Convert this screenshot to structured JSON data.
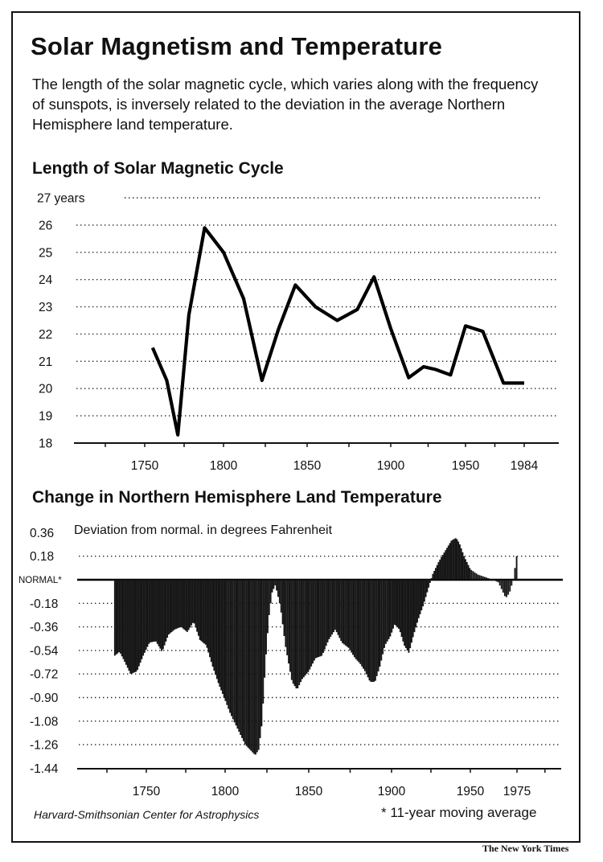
{
  "title": "Solar Magnetism and Temperature",
  "subtitle": "The length of the solar magnetic cycle, which varies along with the frequency of sunspots, is inversely related to the deviation in the average Northern Hemisphere land temperature.",
  "source": "Harvard-Smithsonian Center for Astrophysics",
  "footnote": "* 11-year  moving average",
  "credit": "The New York Times",
  "chart_data": [
    {
      "type": "line",
      "title": "Length of Solar Magnetic Cycle",
      "ylabel": "years",
      "ylim": [
        18,
        27
      ],
      "y_ticks": [
        "27 years",
        "26",
        "25",
        "24",
        "23",
        "22",
        "21",
        "20",
        "19",
        "18"
      ],
      "x_ticks": [
        "1750",
        "1800",
        "1850",
        "1900",
        "1950",
        "1984"
      ],
      "grid": true,
      "series": [
        {
          "x": [
            1755,
            1764,
            1771,
            1778,
            1788,
            1800,
            1812,
            1823,
            1833,
            1843,
            1855,
            1868,
            1880,
            1890,
            1900,
            1912,
            1922,
            1930,
            1940,
            1950,
            1960,
            1972,
            1984
          ],
          "y": [
            21.5,
            20.3,
            18.3,
            22.7,
            25.9,
            25.0,
            23.3,
            20.3,
            22.2,
            23.8,
            23.0,
            22.5,
            22.9,
            24.1,
            22.2,
            20.4,
            20.8,
            20.7,
            20.5,
            22.3,
            22.1,
            20.2,
            20.2
          ]
        }
      ]
    },
    {
      "type": "bar",
      "title": "Change in Northern Hemisphere Land Temperature",
      "note": "Deviation from normal. in degrees Fahrenheit",
      "baseline_label": "NORMAL*",
      "ylim": [
        -1.44,
        0.36
      ],
      "y_ticks": [
        "0.36",
        "0.18",
        "-0.18",
        "-0.36",
        "-0.54",
        "-0.72",
        "-0.90",
        "-1.08",
        "-1.26",
        "-1.44"
      ],
      "x_ticks": [
        "1750",
        "1800",
        "1850",
        "1900",
        "1950",
        "1975"
      ],
      "grid": true,
      "series": [
        {
          "name": "11-year moving average",
          "x": [
            1730,
            1733,
            1736,
            1740,
            1744,
            1748,
            1752,
            1756,
            1760,
            1764,
            1768,
            1772,
            1776,
            1780,
            1784,
            1788,
            1792,
            1796,
            1800,
            1803,
            1806,
            1809,
            1812,
            1815,
            1818,
            1820,
            1822,
            1824,
            1826,
            1828,
            1830,
            1833,
            1836,
            1840,
            1843,
            1846,
            1850,
            1854,
            1858,
            1862,
            1866,
            1870,
            1874,
            1878,
            1881,
            1884,
            1887,
            1890,
            1893,
            1896,
            1899,
            1902,
            1905,
            1908,
            1911,
            1914,
            1917,
            1920,
            1923,
            1926,
            1930,
            1934,
            1938,
            1941,
            1943,
            1946,
            1950,
            1954,
            1958,
            1962,
            1965,
            1967,
            1969,
            1971,
            1973,
            1975
          ],
          "y": [
            -0.58,
            -0.55,
            -0.62,
            -0.72,
            -0.7,
            -0.58,
            -0.48,
            -0.47,
            -0.55,
            -0.42,
            -0.38,
            -0.36,
            -0.4,
            -0.32,
            -0.46,
            -0.5,
            -0.66,
            -0.8,
            -0.92,
            -1.02,
            -1.1,
            -1.18,
            -1.26,
            -1.3,
            -1.34,
            -1.3,
            -1.1,
            -0.66,
            -0.3,
            -0.1,
            -0.04,
            -0.2,
            -0.5,
            -0.78,
            -0.84,
            -0.76,
            -0.7,
            -0.6,
            -0.58,
            -0.46,
            -0.38,
            -0.48,
            -0.52,
            -0.6,
            -0.64,
            -0.7,
            -0.78,
            -0.78,
            -0.66,
            -0.5,
            -0.44,
            -0.34,
            -0.38,
            -0.5,
            -0.56,
            -0.42,
            -0.3,
            -0.2,
            -0.08,
            0.04,
            0.14,
            0.22,
            0.3,
            0.32,
            0.28,
            0.18,
            0.08,
            0.04,
            0.02,
            0.0,
            -0.02,
            -0.08,
            -0.14,
            -0.1,
            0.0,
            0.2
          ]
        }
      ]
    }
  ]
}
